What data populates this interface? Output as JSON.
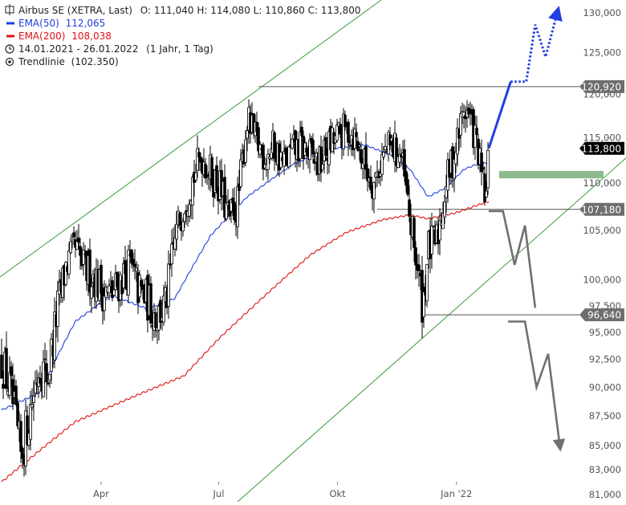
{
  "header": {
    "title": "Airbus SE (XETRA, Last)",
    "ohlc": "O: 111,040   H: 114,080   L: 110,860   C: 113,800",
    "ema50_label": "EMA(50)",
    "ema50_value": "112,065",
    "ema200_label": "EMA(200)",
    "ema200_value": "108,038",
    "range": "14.01.2021 - 26.01.2022",
    "interval": "(1 Jahr, 1 Tag)",
    "trend_label": "Trendlinie",
    "trend_value": "(102.350)"
  },
  "colors": {
    "candles": "#000000",
    "ema50": "#1f3fe0",
    "ema200": "#e01010",
    "trendline": "#3a9a3a",
    "levels": "#555555",
    "badge_grey": "#6e6e6e",
    "badge_black": "#000000",
    "forecast_up": "#1f3fe0",
    "forecast_down": "#707070",
    "zone": "#8dbb8d"
  },
  "chart_data": {
    "type": "candlestick",
    "x_ticks": [
      "Apr",
      "Jul",
      "Okt",
      "Jan '22"
    ],
    "y_ticks": [
      {
        "label": "130,000",
        "value": 130
      },
      {
        "label": "125,000",
        "value": 125
      },
      {
        "label": "120,000",
        "value": 120
      },
      {
        "label": "115,000",
        "value": 115
      },
      {
        "label": "110,000",
        "value": 110
      },
      {
        "label": "105,000",
        "value": 105
      },
      {
        "label": "100,000",
        "value": 100
      },
      {
        "label": "97,500",
        "value": 97.5
      },
      {
        "label": "95,000",
        "value": 95
      },
      {
        "label": "92,500",
        "value": 92.5
      },
      {
        "label": "90,000",
        "value": 90
      },
      {
        "label": "87,500",
        "value": 87.5
      },
      {
        "label": "85,000",
        "value": 85
      },
      {
        "label": "83,000",
        "value": 83
      },
      {
        "label": "81,000",
        "value": 81
      }
    ],
    "price_path": [
      [
        "2021-01-14",
        92.5
      ],
      [
        "2021-01-22",
        89
      ],
      [
        "2021-01-29",
        84
      ],
      [
        "2021-02-05",
        88
      ],
      [
        "2021-02-12",
        92
      ],
      [
        "2021-02-19",
        91
      ],
      [
        "2021-02-26",
        97
      ],
      [
        "2021-03-05",
        101.5
      ],
      [
        "2021-03-12",
        103
      ],
      [
        "2021-03-19",
        101
      ],
      [
        "2021-03-26",
        100.5
      ],
      [
        "2021-04-02",
        99
      ],
      [
        "2021-04-09",
        98.5
      ],
      [
        "2021-04-16",
        100
      ],
      [
        "2021-04-23",
        101.5
      ],
      [
        "2021-04-30",
        99
      ],
      [
        "2021-05-07",
        98
      ],
      [
        "2021-05-14",
        96.5
      ],
      [
        "2021-05-21",
        97.5
      ],
      [
        "2021-05-28",
        104
      ],
      [
        "2021-06-04",
        108
      ],
      [
        "2021-06-11",
        110.5
      ],
      [
        "2021-06-18",
        113
      ],
      [
        "2021-06-25",
        111
      ],
      [
        "2021-07-02",
        109.5
      ],
      [
        "2021-07-09",
        106
      ],
      [
        "2021-07-16",
        108
      ],
      [
        "2021-07-23",
        117
      ],
      [
        "2021-07-30",
        114.5
      ],
      [
        "2021-08-06",
        113
      ],
      [
        "2021-08-13",
        114
      ],
      [
        "2021-08-20",
        112
      ],
      [
        "2021-08-27",
        113.5
      ],
      [
        "2021-09-03",
        114
      ],
      [
        "2021-09-10",
        113
      ],
      [
        "2021-09-17",
        112
      ],
      [
        "2021-09-24",
        114
      ],
      [
        "2021-10-01",
        115
      ],
      [
        "2021-10-08",
        116
      ],
      [
        "2021-10-15",
        115
      ],
      [
        "2021-10-22",
        112
      ],
      [
        "2021-10-29",
        110
      ],
      [
        "2021-11-05",
        113
      ],
      [
        "2021-11-12",
        114
      ],
      [
        "2021-11-19",
        113
      ],
      [
        "2021-11-26",
        106
      ],
      [
        "2021-12-01",
        102
      ],
      [
        "2021-12-03",
        100
      ],
      [
        "2021-12-06",
        97.5
      ],
      [
        "2021-12-10",
        103
      ],
      [
        "2021-12-17",
        104
      ],
      [
        "2021-12-24",
        110
      ],
      [
        "2021-12-31",
        113.5
      ],
      [
        "2022-01-07",
        118.5
      ],
      [
        "2022-01-12",
        117
      ],
      [
        "2022-01-17",
        114
      ],
      [
        "2022-01-20",
        111
      ],
      [
        "2022-01-24",
        108
      ],
      [
        "2022-01-26",
        113.8
      ]
    ],
    "ema50": [
      [
        "2021-01-14",
        88
      ],
      [
        "2021-02-12",
        89.5
      ],
      [
        "2021-03-12",
        96
      ],
      [
        "2021-04-09",
        98.5
      ],
      [
        "2021-05-07",
        97.2
      ],
      [
        "2021-05-28",
        98.2
      ],
      [
        "2021-06-25",
        104.5
      ],
      [
        "2021-07-23",
        108.5
      ],
      [
        "2021-08-27",
        112
      ],
      [
        "2021-09-24",
        113.7
      ],
      [
        "2021-10-22",
        114.2
      ],
      [
        "2021-11-12",
        113
      ],
      [
        "2021-11-26",
        111.5
      ],
      [
        "2021-12-10",
        108.5
      ],
      [
        "2021-12-24",
        109.5
      ],
      [
        "2022-01-07",
        111.5
      ],
      [
        "2022-01-20",
        112.2
      ],
      [
        "2022-01-26",
        112.065
      ]
    ],
    "ema200": [
      [
        "2021-01-14",
        82
      ],
      [
        "2021-03-12",
        87
      ],
      [
        "2021-05-07",
        89.7
      ],
      [
        "2021-06-04",
        91
      ],
      [
        "2021-07-02",
        94.5
      ],
      [
        "2021-08-06",
        98.5
      ],
      [
        "2021-09-10",
        102.5
      ],
      [
        "2021-10-08",
        104.8
      ],
      [
        "2021-11-05",
        106.1
      ],
      [
        "2021-11-26",
        106.6
      ],
      [
        "2021-12-10",
        106.2
      ],
      [
        "2021-12-31",
        106.8
      ],
      [
        "2022-01-26",
        108.038
      ]
    ],
    "trendline_value": 102.35,
    "levels": [
      {
        "label": "120,920",
        "value": 120.92,
        "style": "grey"
      },
      {
        "label": "113,800",
        "value": 113.8,
        "style": "black"
      },
      {
        "label": "107,180",
        "value": 107.18,
        "style": "grey"
      },
      {
        "label": "96,640",
        "value": 96.64,
        "style": "grey"
      }
    ],
    "support_zone": [
      110.5,
      111.3
    ],
    "forecast_up": [
      [
        "2022-01-26",
        113.8
      ],
      [
        "2022-02-12",
        121.5
      ],
      [
        "2022-02-24",
        121.5
      ],
      [
        "2022-03-03",
        128.5
      ],
      [
        "2022-03-11",
        124.5
      ],
      [
        "2022-03-20",
        130
      ]
    ],
    "forecast_down": [
      [
        "2022-01-26",
        107
      ],
      [
        "2022-02-06",
        107
      ],
      [
        "2022-02-15",
        101.5
      ],
      [
        "2022-02-23",
        105.5
      ],
      [
        "2022-03-03",
        97.3
      ]
    ],
    "forecast_down2": [
      [
        "2022-02-10",
        96
      ],
      [
        "2022-02-23",
        96
      ],
      [
        "2022-03-04",
        90
      ],
      [
        "2022-03-13",
        93
      ],
      [
        "2022-03-22",
        85
      ]
    ]
  }
}
